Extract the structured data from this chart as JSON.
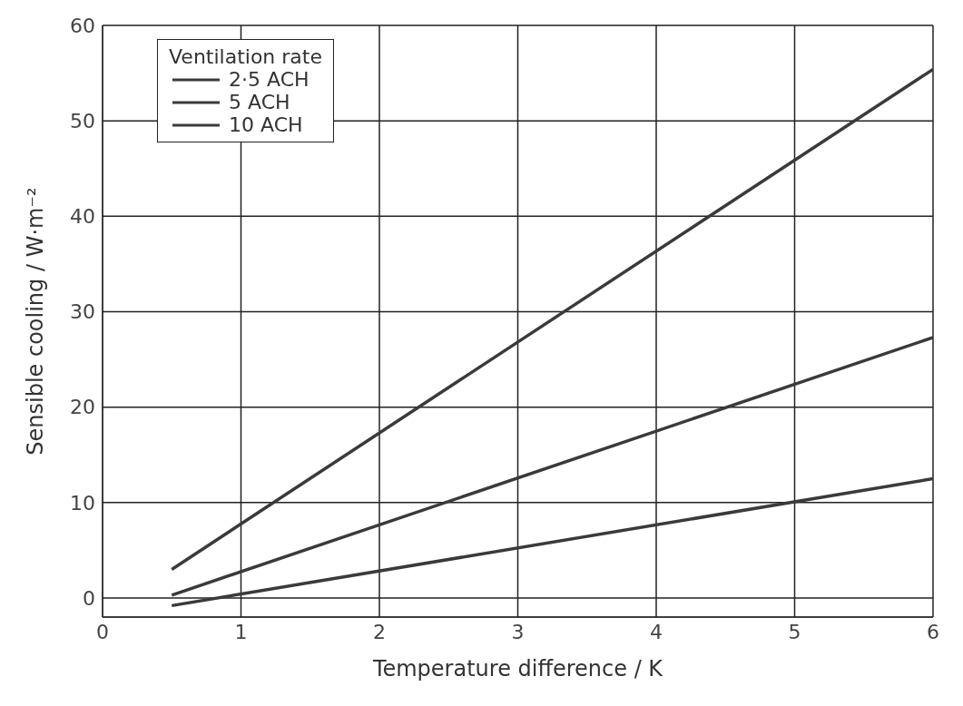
{
  "chart_data": {
    "type": "line",
    "xlabel": "Temperature difference / K",
    "ylabel": "Sensible cooling / W·m⁻²",
    "legend_title": "Ventilation rate",
    "xlim": [
      0,
      6
    ],
    "xticks": [
      0,
      1,
      2,
      3,
      4,
      5,
      6
    ],
    "ylim": [
      -2,
      60
    ],
    "yticks": [
      0,
      10,
      20,
      30,
      40,
      50,
      60
    ],
    "grid": true,
    "legend": "top left",
    "marker": "none",
    "line_style": "solid",
    "x": [
      0.5,
      6
    ],
    "series": [
      {
        "name": "2·5 ACH",
        "color": "#3a3a3a",
        "values": [
          -0.8,
          12.5
        ]
      },
      {
        "name": "5 ACH",
        "color": "#3a3a3a",
        "values": [
          0.3,
          27.3
        ]
      },
      {
        "name": "10 ACH",
        "color": "#3a3a3a",
        "values": [
          3,
          55.4
        ]
      }
    ]
  }
}
